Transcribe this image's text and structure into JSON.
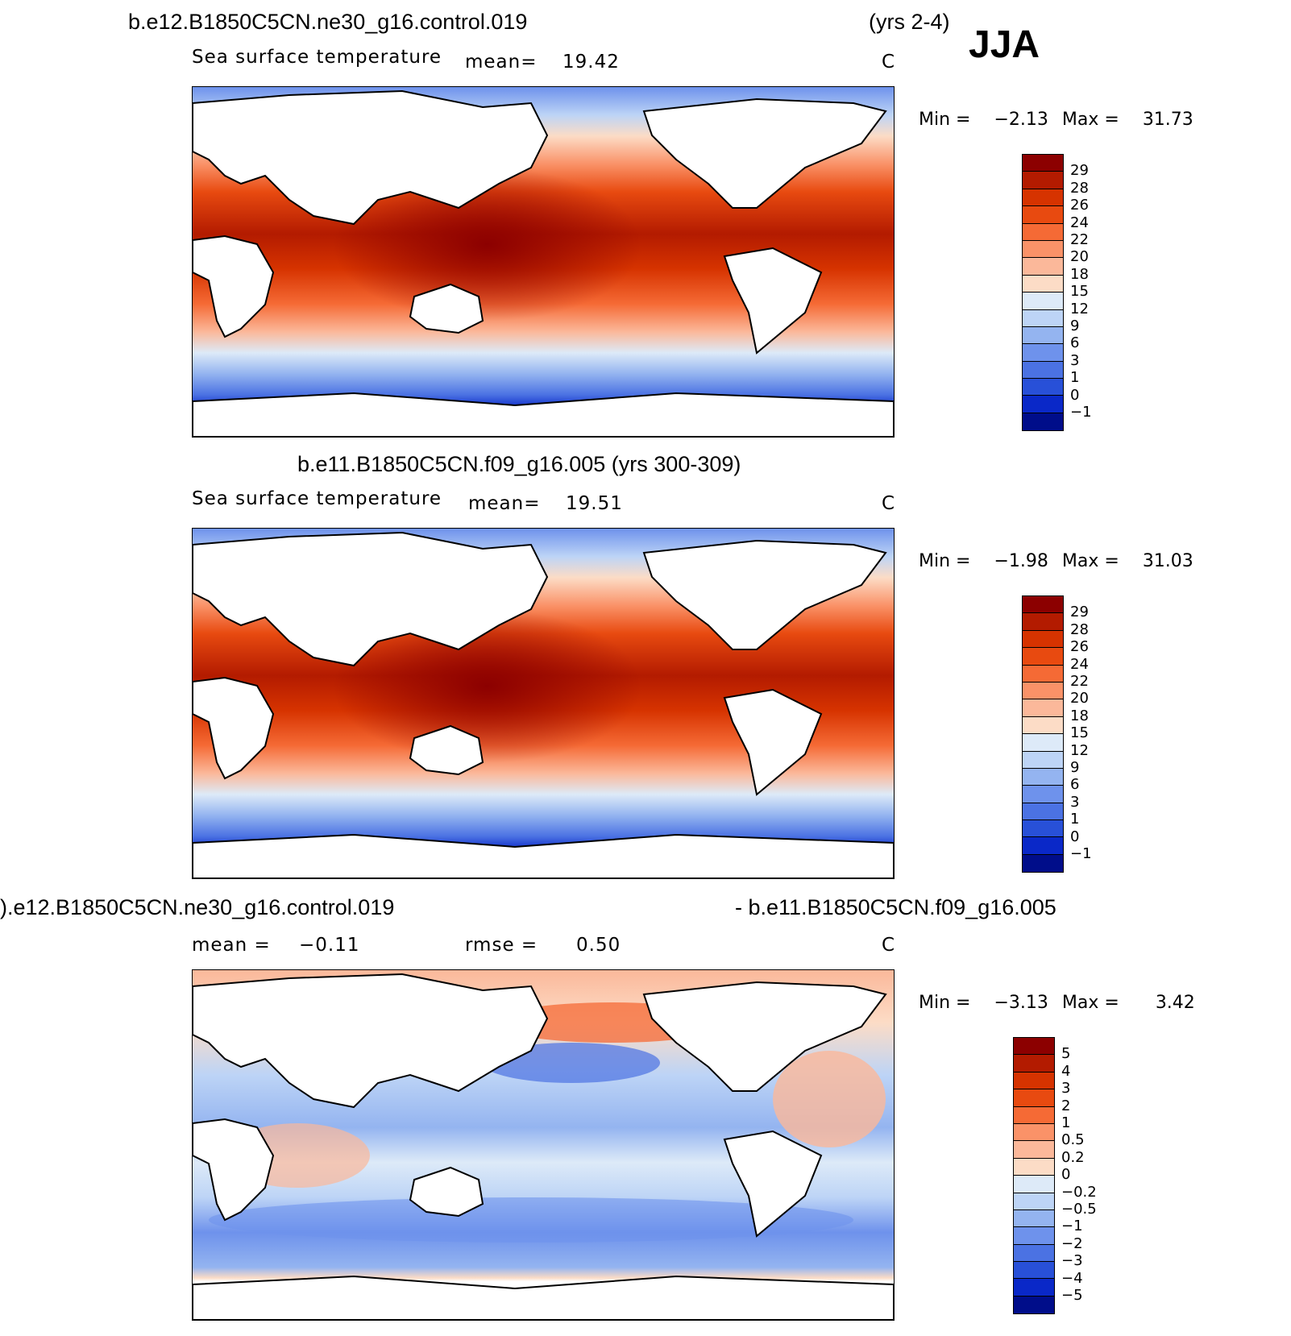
{
  "season": "JJA",
  "panels": [
    {
      "id": "top",
      "run_title": "b.e12.B1850C5CN.ne30_g16.control.019",
      "years": "(yrs 2-4)",
      "variable": "Sea surface temperature",
      "stat_label": "mean=",
      "stat_value": "19.42",
      "units": "C",
      "min_label": "Min =",
      "min_value": "−2.13",
      "max_label": "Max =",
      "max_value": "31.73",
      "levels": [
        "29",
        "28",
        "26",
        "24",
        "22",
        "20",
        "18",
        "15",
        "12",
        "9",
        "6",
        "3",
        "1",
        "0",
        "−1"
      ],
      "colors": [
        "#8c0000",
        "#b31b00",
        "#d63300",
        "#e84a10",
        "#f56a35",
        "#fa9268",
        "#fbb89a",
        "#fcdcc6",
        "#ddeaf8",
        "#bdd4f6",
        "#94b4f0",
        "#6e92ec",
        "#4b72e3",
        "#2850d8",
        "#0a28c8",
        "#000d8a"
      ]
    },
    {
      "id": "middle",
      "run_title": "b.e11.B1850C5CN.f09_g16.005 (yrs 300-309)",
      "variable": "Sea surface temperature",
      "stat_label": "mean=",
      "stat_value": "19.51",
      "units": "C",
      "min_label": "Min =",
      "min_value": "−1.98",
      "max_label": "Max =",
      "max_value": "31.03",
      "levels": [
        "29",
        "28",
        "26",
        "24",
        "22",
        "20",
        "18",
        "15",
        "12",
        "9",
        "6",
        "3",
        "1",
        "0",
        "−1"
      ],
      "colors": [
        "#8c0000",
        "#b31b00",
        "#d63300",
        "#e84a10",
        "#f56a35",
        "#fa9268",
        "#fbb89a",
        "#fcdcc6",
        "#ddeaf8",
        "#bdd4f6",
        "#94b4f0",
        "#6e92ec",
        "#4b72e3",
        "#2850d8",
        "#0a28c8",
        "#000d8a"
      ]
    },
    {
      "id": "bottom",
      "run_title_left": ").e12.B1850C5CN.ne30_g16.control.019",
      "run_title_right": "- b.e11.B1850C5CN.f09_g16.005",
      "stat_label": "mean =",
      "stat_value": "−0.11",
      "rmse_label": "rmse =",
      "rmse_value": "0.50",
      "units": "C",
      "min_label": "Min =",
      "min_value": "−3.13",
      "max_label": "Max =",
      "max_value": "3.42",
      "levels": [
        "5",
        "4",
        "3",
        "2",
        "1",
        "0.5",
        "0.2",
        "0",
        "−0.2",
        "−0.5",
        "−1",
        "−2",
        "−3",
        "−4",
        "−5"
      ],
      "colors": [
        "#8c0000",
        "#b31b00",
        "#d63300",
        "#e84a10",
        "#f56a35",
        "#fa9268",
        "#fbb89a",
        "#fcdcc6",
        "#ddeaf8",
        "#bdd4f6",
        "#94b4f0",
        "#6e92ec",
        "#4b72e3",
        "#2850d8",
        "#0a28c8",
        "#000d8a"
      ]
    }
  ]
}
